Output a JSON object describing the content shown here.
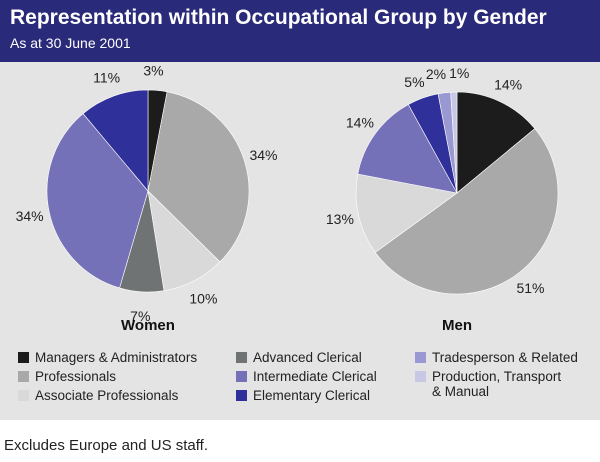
{
  "header": {
    "title": "Representation within Occupational Group by Gender",
    "subtitle": "As at 30 June 2001"
  },
  "colors": {
    "header_bg": "#2a2a7a",
    "panel_bg": "#e4e4e4",
    "Managers & Administrators": "#1c1c1c",
    "Professionals": "#a9a9a9",
    "Associate Professionals": "#d9d9d9",
    "Advanced Clerical": "#6f7373",
    "Intermediate Clerical": "#7471b9",
    "Elementary Clerical": "#30309a",
    "Tradesperson & Related": "#9a98d2",
    "Production, Transport & Manual": "#c8c7e4"
  },
  "chart_data": [
    {
      "type": "pie",
      "title": "Women",
      "categories": [
        "Managers & Administrators",
        "Professionals",
        "Associate Professionals",
        "Advanced Clerical",
        "Intermediate Clerical",
        "Elementary Clerical"
      ],
      "values": [
        3,
        34,
        10,
        7,
        34,
        11
      ],
      "labels": [
        "3%",
        "34%",
        "10%",
        "7%",
        "34%",
        "11%"
      ]
    },
    {
      "type": "pie",
      "title": "Men",
      "categories": [
        "Managers & Administrators",
        "Professionals",
        "Associate Professionals",
        "Intermediate Clerical",
        "Elementary Clerical",
        "Tradesperson & Related",
        "Production, Transport & Manual"
      ],
      "values": [
        14,
        51,
        13,
        14,
        5,
        2,
        1
      ],
      "labels": [
        "14%",
        "51%",
        "13%",
        "14%",
        "5%",
        "2%",
        "1%"
      ]
    }
  ],
  "legend": [
    {
      "label": "Managers & Administrators",
      "key": "Managers & Administrators"
    },
    {
      "label": "Professionals",
      "key": "Professionals"
    },
    {
      "label": "Associate Professionals",
      "key": "Associate Professionals"
    },
    {
      "label": "Advanced Clerical",
      "key": "Advanced Clerical"
    },
    {
      "label": "Intermediate Clerical",
      "key": "Intermediate Clerical"
    },
    {
      "label": "Elementary Clerical",
      "key": "Elementary Clerical"
    },
    {
      "label": "Tradesperson & Related",
      "key": "Tradesperson & Related"
    },
    {
      "label": "Production, Transport",
      "label2": "& Manual",
      "key": "Production, Transport & Manual"
    }
  ],
  "footnote": "Excludes Europe and US staff."
}
